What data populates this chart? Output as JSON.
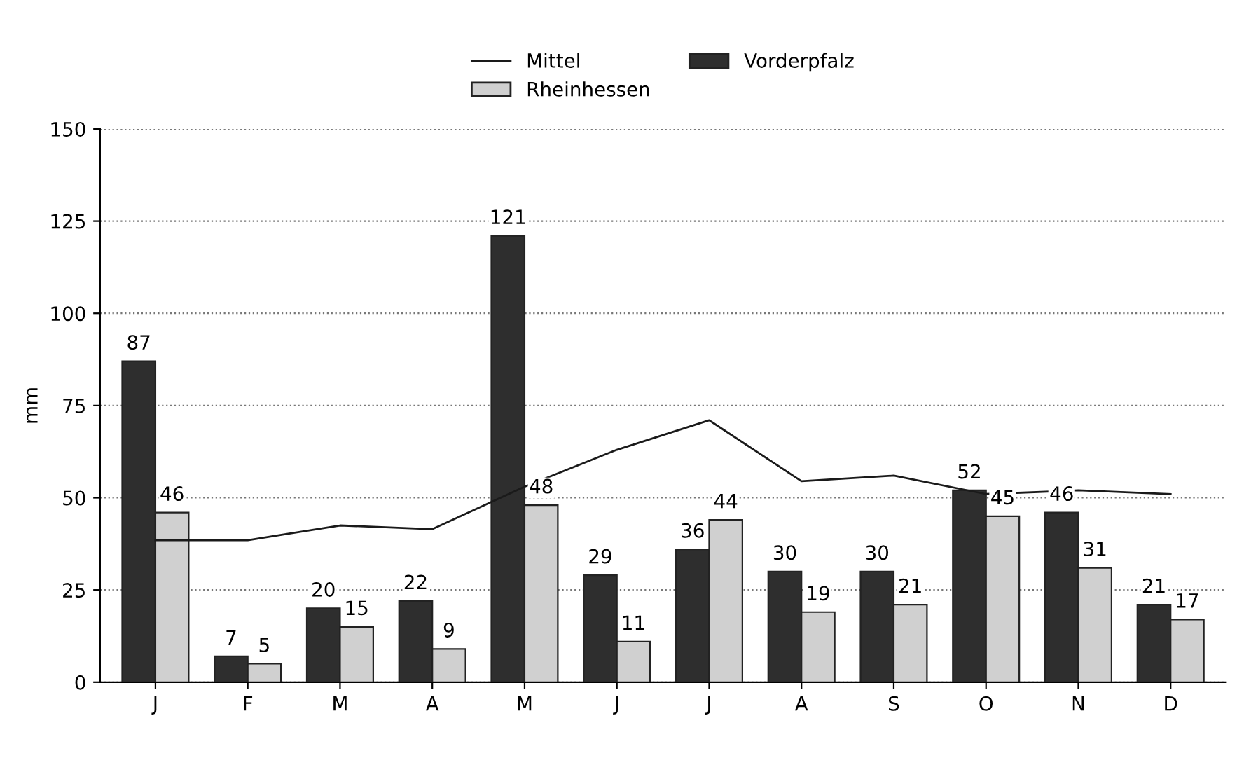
{
  "chart_data": {
    "type": "bar",
    "ylabel": "mm",
    "categories": [
      "J",
      "F",
      "M",
      "A",
      "M",
      "J",
      "J",
      "A",
      "S",
      "O",
      "N",
      "D"
    ],
    "series": [
      {
        "name": "Mittel",
        "type": "line",
        "color": "#1a1a1a",
        "values": [
          38.5,
          38.5,
          42.5,
          41.5,
          53,
          63,
          71,
          54.5,
          56,
          51,
          52,
          51
        ]
      },
      {
        "name": "Vorderpfalz",
        "color": "#2e2e2e",
        "values": [
          87,
          7,
          20,
          22,
          121,
          29,
          36,
          30,
          30,
          52,
          46,
          21
        ],
        "data_labels": true
      },
      {
        "name": "Rheinhessen",
        "color": "#d0d0d0",
        "values": [
          46,
          5,
          15,
          9,
          48,
          11,
          44,
          19,
          21,
          45,
          31,
          17
        ],
        "data_labels": true
      }
    ],
    "ylim": [
      0,
      150
    ],
    "yticks": [
      0,
      25,
      50,
      75,
      100,
      125,
      150
    ],
    "grid": "y",
    "legend": "top"
  }
}
